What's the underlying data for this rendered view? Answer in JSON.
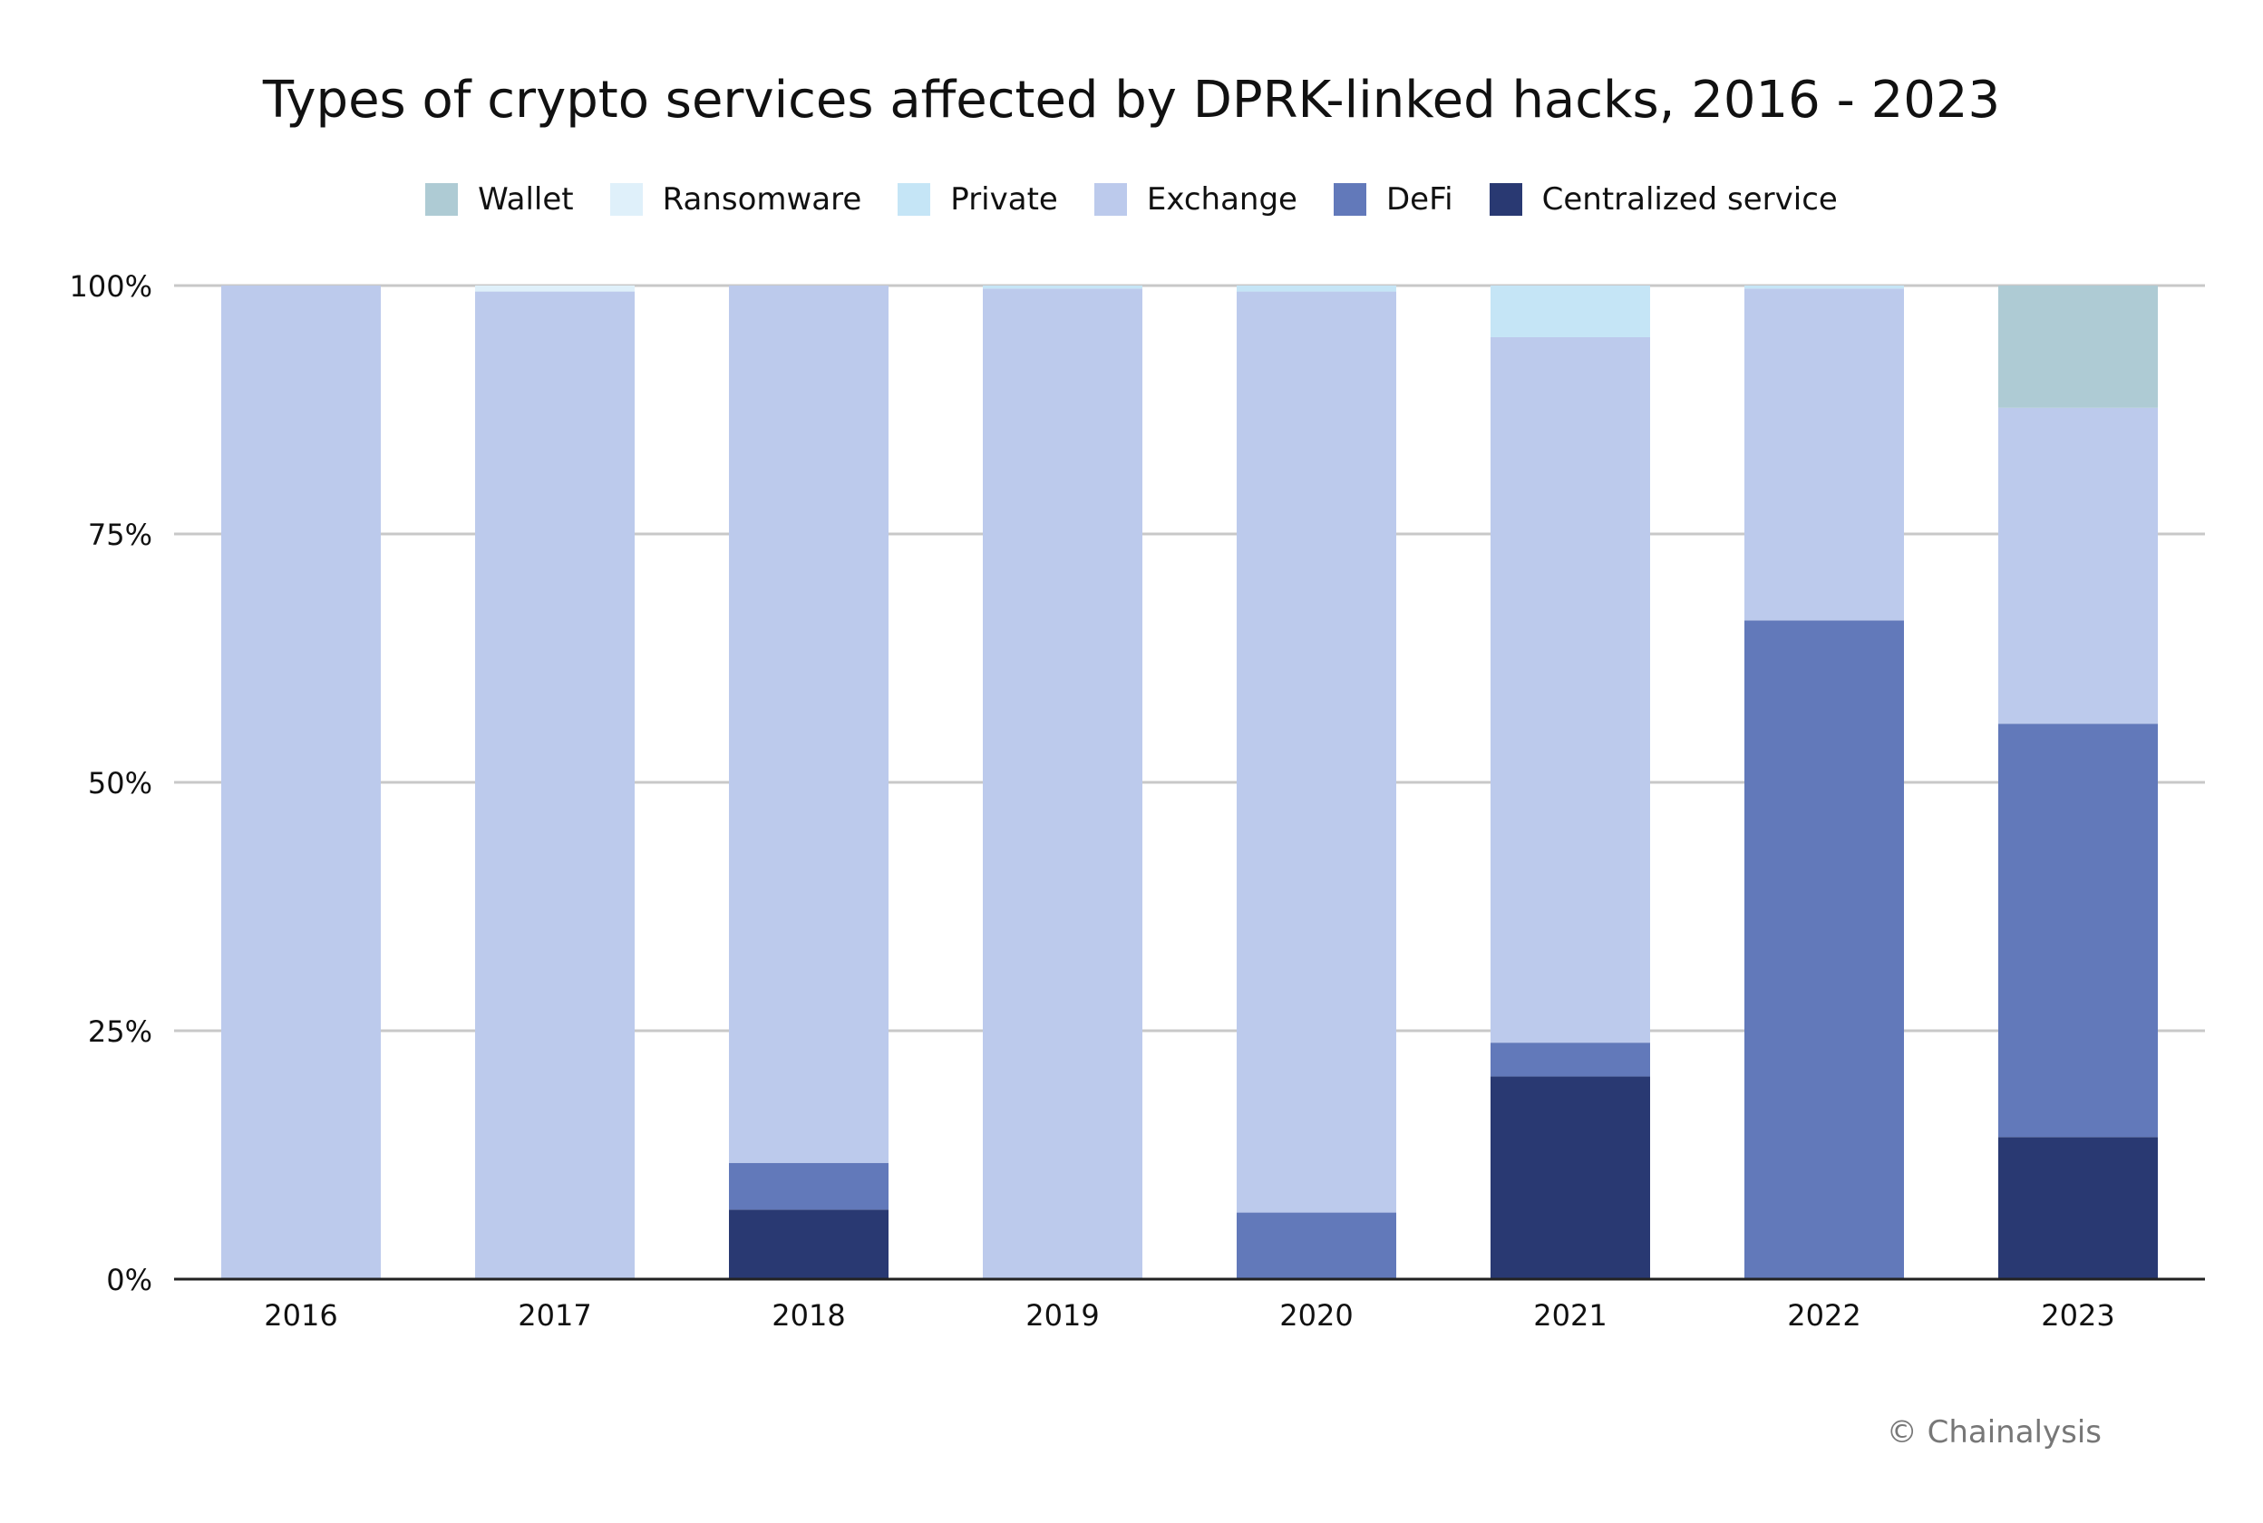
{
  "chart_data": {
    "type": "bar",
    "stacked": true,
    "title": "Types of crypto services affected by DPRK-linked hacks, 2016 - 2023",
    "xlabel": "",
    "ylabel": "",
    "ylim": [
      0,
      100
    ],
    "yticks": [
      "0%",
      "25%",
      "50%",
      "75%",
      "100%"
    ],
    "ytick_values": [
      0,
      25,
      50,
      75,
      100
    ],
    "grid": true,
    "legend_position": "top-center",
    "categories": [
      "2016",
      "2017",
      "2018",
      "2019",
      "2020",
      "2021",
      "2022",
      "2023"
    ],
    "series": [
      {
        "name": "Centralized service",
        "color": "#293972",
        "values": [
          0,
          0,
          7.0,
          0,
          0,
          20.4,
          0,
          14.3
        ]
      },
      {
        "name": "DeFi",
        "color": "#6279ba",
        "values": [
          0,
          0,
          4.7,
          0,
          6.7,
          3.4,
          66.3,
          41.6
        ]
      },
      {
        "name": "Exchange",
        "color": "#bccaec",
        "values": [
          100,
          99.4,
          88.3,
          99.7,
          92.7,
          71.0,
          33.4,
          31.8
        ]
      },
      {
        "name": "Private",
        "color": "#c5e5f6",
        "values": [
          0,
          0,
          0,
          0.3,
          0.6,
          5.2,
          0.3,
          0
        ]
      },
      {
        "name": "Ransomware",
        "color": "#dff0fa",
        "values": [
          0,
          0.6,
          0,
          0,
          0,
          0,
          0,
          0
        ]
      },
      {
        "name": "Wallet",
        "color": "#aecbd4",
        "values": [
          0,
          0,
          0,
          0,
          0,
          0,
          0,
          12.3
        ]
      }
    ],
    "legend_order": [
      "Wallet",
      "Ransomware",
      "Private",
      "Exchange",
      "DeFi",
      "Centralized service"
    ]
  },
  "credit": "© Chainalysis"
}
